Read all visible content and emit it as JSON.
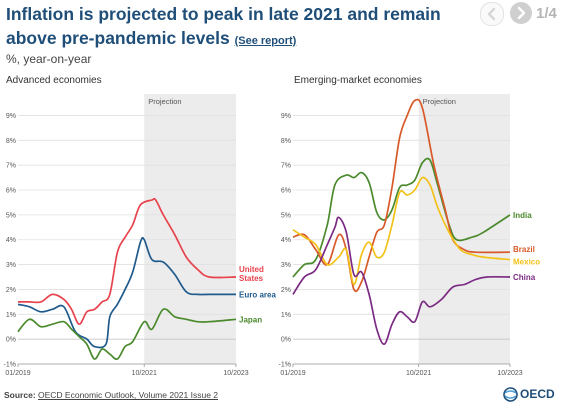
{
  "header": {
    "title": "Inflation is projected to peak in late 2021 and remain above pre-pandemic levels",
    "link_label": "(See report)",
    "subtitle": "%, year-on-year"
  },
  "pager": {
    "label": "1/4",
    "prev_icon": "chevron-left-icon",
    "next_icon": "chevron-right-icon"
  },
  "footer": {
    "source_prefix": "Source: ",
    "source_link": "OECD Economic Outlook, Volume 2021 Issue 2",
    "logo_text": "OECD"
  },
  "colors": {
    "projection_band": "#ececec",
    "gridline": "#e0e0e0",
    "us": "#e8434d",
    "euro": "#1f5a8c",
    "japan": "#4a8a2c",
    "india": "#4a8a2c",
    "brazil": "#d85a2a",
    "mexico": "#f3c219",
    "china": "#7b2b83"
  },
  "chart_data": [
    {
      "type": "line",
      "title": "Advanced economies",
      "projection_label": "Projection",
      "projection_start": "2021-10",
      "projection_end": "2023-10",
      "x_ticks": [
        "01/2019",
        "10/2021",
        "10/2023"
      ],
      "y_ticks": [
        "-1%",
        "0%",
        "1%",
        "2%",
        "3%",
        "4%",
        "5%",
        "6%",
        "7%",
        "8%",
        "9%"
      ],
      "ylim": [
        -1,
        9.3
      ],
      "xlim": [
        "2019-01",
        "2023-10"
      ],
      "grid": true,
      "series": [
        {
          "name": "United States",
          "label_lines": [
            "United",
            "States"
          ],
          "color": "#e8434d",
          "points": [
            [
              "2019-01",
              1.5
            ],
            [
              "2019-04",
              1.5
            ],
            [
              "2019-07",
              1.5
            ],
            [
              "2019-10",
              1.8
            ],
            [
              "2020-01",
              1.6
            ],
            [
              "2020-03",
              1.2
            ],
            [
              "2020-05",
              0.6
            ],
            [
              "2020-07",
              1.1
            ],
            [
              "2020-09",
              1.2
            ],
            [
              "2020-11",
              1.5
            ],
            [
              "2021-01",
              1.8
            ],
            [
              "2021-03",
              3.5
            ],
            [
              "2021-05",
              4.1
            ],
            [
              "2021-07",
              4.6
            ],
            [
              "2021-09",
              5.4
            ],
            [
              "2021-12",
              5.6
            ],
            [
              "2022-01",
              5.6
            ],
            [
              "2022-03",
              5.0
            ],
            [
              "2022-06",
              4.2
            ],
            [
              "2022-09",
              3.3
            ],
            [
              "2022-12",
              2.8
            ],
            [
              "2023-03",
              2.5
            ],
            [
              "2023-10",
              2.5
            ]
          ]
        },
        {
          "name": "Euro area",
          "label_lines": [
            "Euro area"
          ],
          "color": "#1f5a8c",
          "points": [
            [
              "2019-01",
              1.4
            ],
            [
              "2019-04",
              1.3
            ],
            [
              "2019-07",
              1.1
            ],
            [
              "2019-10",
              1.2
            ],
            [
              "2020-01",
              1.3
            ],
            [
              "2020-04",
              0.3
            ],
            [
              "2020-07",
              0.0
            ],
            [
              "2020-09",
              -0.3
            ],
            [
              "2020-12",
              -0.2
            ],
            [
              "2021-01",
              0.9
            ],
            [
              "2021-03",
              1.4
            ],
            [
              "2021-05",
              2.0
            ],
            [
              "2021-07",
              2.7
            ],
            [
              "2021-09",
              3.9
            ],
            [
              "2021-10",
              4.0
            ],
            [
              "2021-12",
              3.2
            ],
            [
              "2022-03",
              3.1
            ],
            [
              "2022-06",
              2.6
            ],
            [
              "2022-09",
              1.9
            ],
            [
              "2022-12",
              1.8
            ],
            [
              "2023-03",
              1.8
            ],
            [
              "2023-10",
              1.8
            ]
          ]
        },
        {
          "name": "Japan",
          "label_lines": [
            "Japan"
          ],
          "color": "#4a8a2c",
          "points": [
            [
              "2019-01",
              0.3
            ],
            [
              "2019-04",
              0.8
            ],
            [
              "2019-07",
              0.5
            ],
            [
              "2019-10",
              0.6
            ],
            [
              "2020-01",
              0.7
            ],
            [
              "2020-03",
              0.4
            ],
            [
              "2020-05",
              0.1
            ],
            [
              "2020-07",
              -0.2
            ],
            [
              "2020-09",
              -0.8
            ],
            [
              "2020-11",
              -0.4
            ],
            [
              "2021-01",
              -0.6
            ],
            [
              "2021-03",
              -0.8
            ],
            [
              "2021-05",
              -0.3
            ],
            [
              "2021-07",
              -0.1
            ],
            [
              "2021-10",
              0.7
            ],
            [
              "2021-12",
              0.4
            ],
            [
              "2022-03",
              1.2
            ],
            [
              "2022-06",
              0.9
            ],
            [
              "2022-09",
              0.8
            ],
            [
              "2022-12",
              0.7
            ],
            [
              "2023-03",
              0.7
            ],
            [
              "2023-10",
              0.8
            ]
          ]
        }
      ]
    },
    {
      "type": "line",
      "title": "Emerging-market economies",
      "projection_label": "Projection",
      "projection_start": "2021-10",
      "projection_end": "2023-10",
      "x_ticks": [
        "01/2019",
        "10/2021",
        "10/2023"
      ],
      "y_ticks": [
        "-1%",
        "0%",
        "1%",
        "2%",
        "3%",
        "4%",
        "5%",
        "6%",
        "7%",
        "8%",
        "9%"
      ],
      "ylim": [
        -1,
        9.3
      ],
      "xlim": [
        "2019-01",
        "2023-10"
      ],
      "grid": true,
      "series": [
        {
          "name": "India",
          "label_lines": [
            "India"
          ],
          "color": "#4a8a2c",
          "points": [
            [
              "2019-01",
              2.5
            ],
            [
              "2019-04",
              3.0
            ],
            [
              "2019-07",
              3.2
            ],
            [
              "2019-10",
              4.6
            ],
            [
              "2019-12",
              6.2
            ],
            [
              "2020-03",
              6.6
            ],
            [
              "2020-05",
              6.5
            ],
            [
              "2020-07",
              6.7
            ],
            [
              "2020-09",
              6.3
            ],
            [
              "2020-11",
              5.1
            ],
            [
              "2021-01",
              4.8
            ],
            [
              "2021-03",
              5.2
            ],
            [
              "2021-05",
              6.1
            ],
            [
              "2021-07",
              6.2
            ],
            [
              "2021-09",
              6.4
            ],
            [
              "2021-11",
              7.1
            ],
            [
              "2022-01",
              7.2
            ],
            [
              "2022-03",
              6.2
            ],
            [
              "2022-06",
              4.6
            ],
            [
              "2022-08",
              4.0
            ],
            [
              "2022-12",
              4.1
            ],
            [
              "2023-03",
              4.3
            ],
            [
              "2023-10",
              5.0
            ]
          ]
        },
        {
          "name": "Brazil",
          "label_lines": [
            "Brazil"
          ],
          "color": "#d85a2a",
          "points": [
            [
              "2019-01",
              4.1
            ],
            [
              "2019-04",
              4.2
            ],
            [
              "2019-07",
              3.6
            ],
            [
              "2019-10",
              3.0
            ],
            [
              "2020-01",
              4.2
            ],
            [
              "2020-03",
              3.6
            ],
            [
              "2020-05",
              2.0
            ],
            [
              "2020-07",
              2.3
            ],
            [
              "2020-09",
              3.3
            ],
            [
              "2020-11",
              4.3
            ],
            [
              "2021-01",
              4.6
            ],
            [
              "2021-03",
              6.1
            ],
            [
              "2021-05",
              8.1
            ],
            [
              "2021-07",
              9.0
            ],
            [
              "2021-09",
              9.6
            ],
            [
              "2021-11",
              9.3
            ],
            [
              "2022-02",
              7.0
            ],
            [
              "2022-05",
              5.2
            ],
            [
              "2022-07",
              4.0
            ],
            [
              "2022-10",
              3.6
            ],
            [
              "2023-01",
              3.5
            ],
            [
              "2023-10",
              3.5
            ]
          ]
        },
        {
          "name": "Mexico",
          "label_lines": [
            "Mexico"
          ],
          "color": "#f3c219",
          "points": [
            [
              "2019-01",
              4.4
            ],
            [
              "2019-04",
              4.1
            ],
            [
              "2019-07",
              3.8
            ],
            [
              "2019-10",
              3.0
            ],
            [
              "2020-01",
              3.3
            ],
            [
              "2020-03",
              3.6
            ],
            [
              "2020-05",
              2.2
            ],
            [
              "2020-07",
              3.4
            ],
            [
              "2020-09",
              3.9
            ],
            [
              "2020-11",
              3.3
            ],
            [
              "2021-01",
              3.5
            ],
            [
              "2021-03",
              4.6
            ],
            [
              "2021-05",
              5.9
            ],
            [
              "2021-07",
              5.8
            ],
            [
              "2021-09",
              6.0
            ],
            [
              "2021-11",
              6.5
            ],
            [
              "2022-01",
              6.2
            ],
            [
              "2022-03",
              5.3
            ],
            [
              "2022-06",
              4.3
            ],
            [
              "2022-09",
              3.6
            ],
            [
              "2022-12",
              3.4
            ],
            [
              "2023-03",
              3.3
            ],
            [
              "2023-10",
              3.2
            ]
          ]
        },
        {
          "name": "China",
          "label_lines": [
            "China"
          ],
          "color": "#7b2b83",
          "points": [
            [
              "2019-01",
              1.8
            ],
            [
              "2019-04",
              2.5
            ],
            [
              "2019-07",
              2.8
            ],
            [
              "2019-10",
              3.8
            ],
            [
              "2019-12",
              4.5
            ],
            [
              "2020-01",
              4.9
            ],
            [
              "2020-03",
              4.3
            ],
            [
              "2020-05",
              2.6
            ],
            [
              "2020-07",
              2.7
            ],
            [
              "2020-09",
              1.8
            ],
            [
              "2020-11",
              0.4
            ],
            [
              "2021-01",
              -0.2
            ],
            [
              "2021-03",
              0.6
            ],
            [
              "2021-05",
              1.1
            ],
            [
              "2021-07",
              0.9
            ],
            [
              "2021-09",
              0.7
            ],
            [
              "2021-11",
              1.5
            ],
            [
              "2022-01",
              1.3
            ],
            [
              "2022-04",
              1.6
            ],
            [
              "2022-07",
              2.1
            ],
            [
              "2022-10",
              2.2
            ],
            [
              "2023-01",
              2.4
            ],
            [
              "2023-04",
              2.5
            ],
            [
              "2023-10",
              2.5
            ]
          ]
        }
      ]
    }
  ]
}
